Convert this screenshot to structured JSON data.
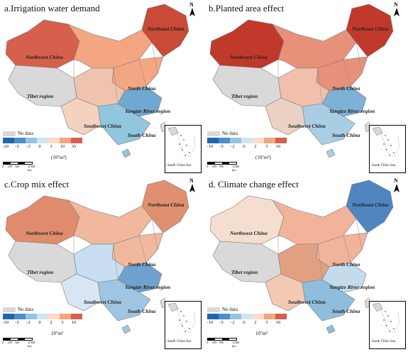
{
  "panels": [
    {
      "title": "a.Irrigation water demand",
      "regions": [
        "Northeast China",
        "Northwest China",
        "North China",
        "Tibet region",
        "Yangtze River region",
        "Southwest China",
        "South China"
      ],
      "legend": {
        "no_data": "No data",
        "ticks": [
          "-20",
          "-5",
          "-3",
          "0",
          "3",
          "10",
          "35"
        ],
        "unit": "(10⁷m³)",
        "colors": [
          "#2166ac",
          "#4f8ec2",
          "#92c5de",
          "#d1e5f0",
          "#fddbc7",
          "#f4a582",
          "#d6604d",
          "#b2182b"
        ]
      },
      "scale": [
        "0",
        "250",
        "500",
        "1,000 km"
      ],
      "inset": "South China Sea"
    },
    {
      "title": "b.Planted area effect",
      "regions": [
        "Northeast China",
        "Northwest China",
        "North China",
        "Tibet region",
        "Yangtze River region",
        "Southwest China",
        "South China"
      ],
      "legend": {
        "no_data": "No data",
        "ticks": [
          "-10",
          "-5",
          "-2",
          "0",
          "2",
          "5",
          "10"
        ],
        "unit": "(10⁷m³)",
        "colors": [
          "#2166ac",
          "#4f8ec2",
          "#92c5de",
          "#d1e5f0",
          "#fddbc7",
          "#f4a582",
          "#d6604d",
          "#b2182b"
        ]
      },
      "scale": [
        "0",
        "250",
        "500",
        "1,000 km"
      ],
      "inset": "South China Sea"
    },
    {
      "title": "c.Crop mix effect",
      "regions": [
        "Northeast China",
        "Northwest China",
        "North China",
        "Tibet region",
        "Yangtze River region",
        "Southwest China",
        "South China"
      ],
      "legend": {
        "no_data": "No data",
        "ticks": [
          "-10",
          "-5",
          "-2",
          "0",
          "2",
          "5",
          "10"
        ],
        "unit": "10⁷m³",
        "colors": [
          "#2166ac",
          "#4f8ec2",
          "#92c5de",
          "#d1e5f0",
          "#fddbc7",
          "#f4a582",
          "#d6604d",
          "#b2182b"
        ]
      },
      "scale": [
        "0",
        "250",
        "500",
        "1,000 km"
      ],
      "inset": "South China Sea"
    },
    {
      "title": "d. Climate change effect",
      "regions": [
        "Northeast China",
        "Northwest China",
        "North China",
        "Tibet region",
        "Yangtze River region",
        "Southwest China",
        "South China"
      ],
      "legend": {
        "no_data": "No data",
        "ticks": [
          "-10",
          "-5",
          "-2",
          "0",
          "2",
          "5",
          "10"
        ],
        "unit": "10⁷m³",
        "colors": [
          "#2166ac",
          "#4f8ec2",
          "#92c5de",
          "#d1e5f0",
          "#fddbc7",
          "#f4a582",
          "#d6604d",
          "#b2182b"
        ]
      },
      "scale": [
        "0",
        "250",
        "500",
        "1,000 km"
      ],
      "inset": "South China Sea"
    }
  ],
  "north_label": "N"
}
